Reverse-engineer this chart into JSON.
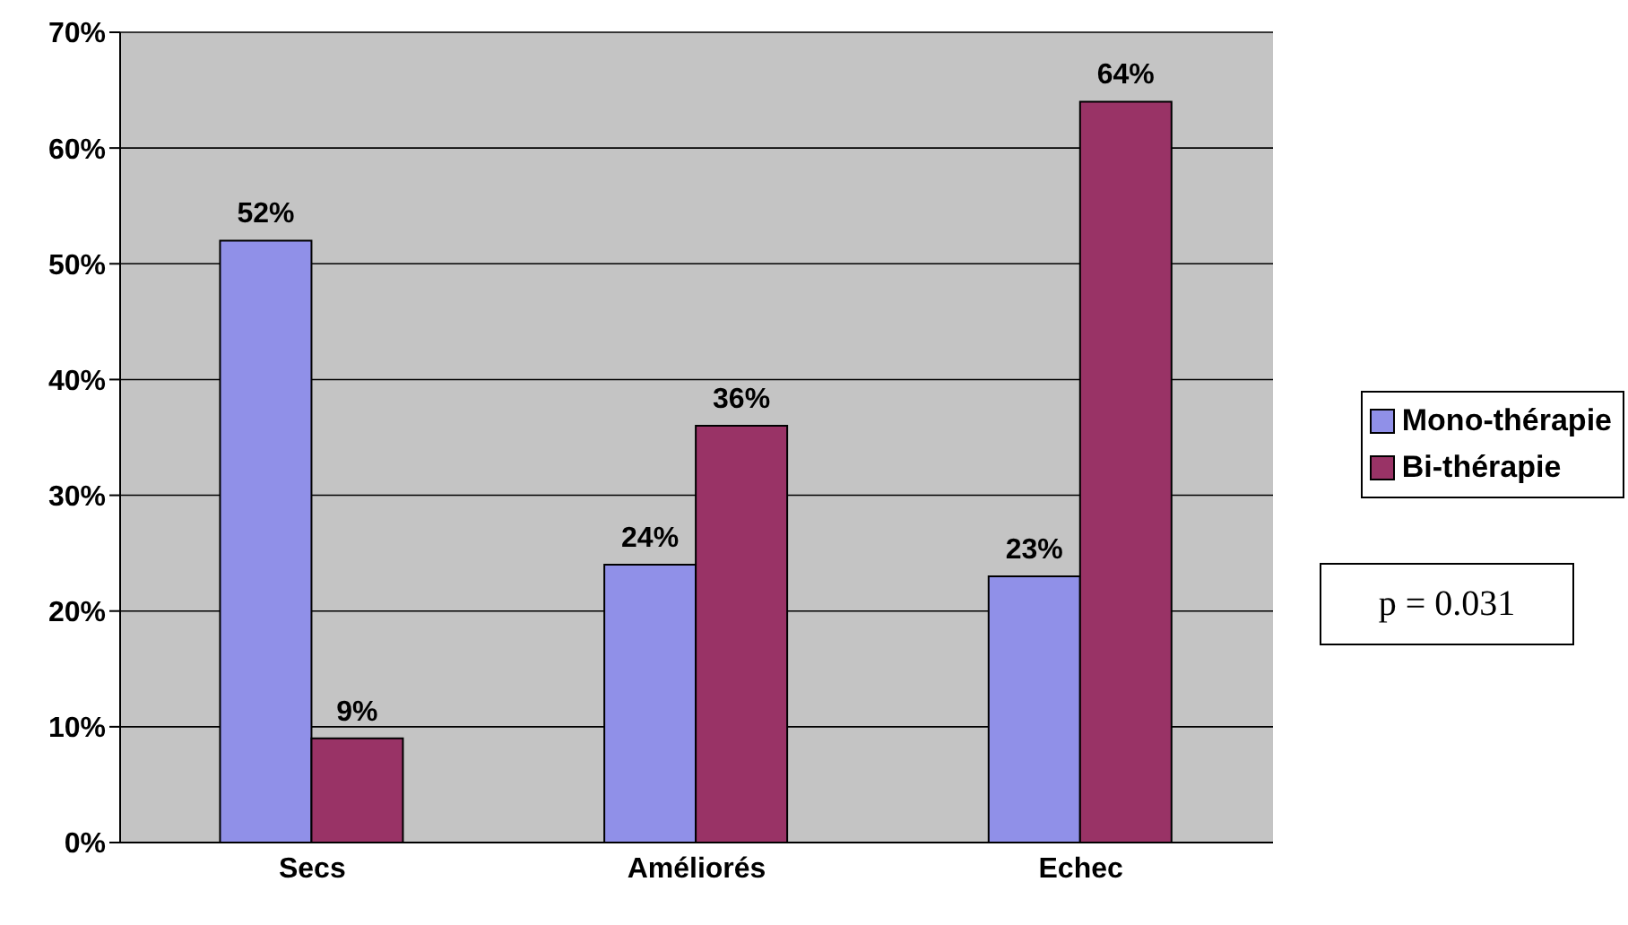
{
  "chart_data": {
    "type": "bar",
    "categories": [
      "Secs",
      "Améliorés",
      "Echec"
    ],
    "series": [
      {
        "name": "Mono-thérapie",
        "color": "#9090e8",
        "values": [
          52,
          24,
          23
        ],
        "value_labels": [
          "52%",
          "24%",
          "23%"
        ]
      },
      {
        "name": "Bi-thérapie",
        "color": "#993366",
        "values": [
          9,
          36,
          64
        ],
        "value_labels": [
          "9%",
          "36%",
          "64%"
        ]
      }
    ],
    "ylim": [
      0,
      70
    ],
    "yticks": [
      {
        "value": 0,
        "label": "0%"
      },
      {
        "value": 10,
        "label": "10%"
      },
      {
        "value": 20,
        "label": "20%"
      },
      {
        "value": 30,
        "label": "30%"
      },
      {
        "value": 40,
        "label": "40%"
      },
      {
        "value": 50,
        "label": "50%"
      },
      {
        "value": 60,
        "label": "60%"
      },
      {
        "value": 70,
        "label": "70%"
      }
    ],
    "grid": "y",
    "legend": "right",
    "annotations": [
      "p = 0.031"
    ]
  }
}
